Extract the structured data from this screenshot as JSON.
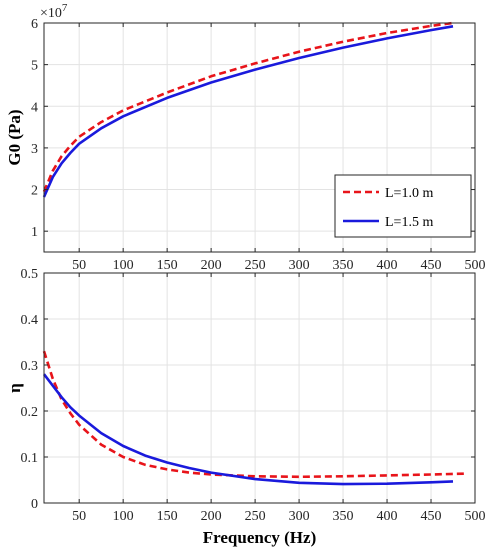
{
  "chart_data": [
    {
      "type": "line",
      "title": "",
      "xlabel": "",
      "ylabel": "G0 (Pa)",
      "y_exponent_label": "×10",
      "y_exponent": "7",
      "xlim": [
        10,
        500
      ],
      "ylim": [
        0.5,
        6
      ],
      "xticks": [
        50,
        100,
        150,
        200,
        250,
        300,
        350,
        400,
        450,
        500
      ],
      "yticks": [
        1,
        2,
        3,
        4,
        5,
        6
      ],
      "grid": true,
      "legend": {
        "placement": "lower-right"
      },
      "series": [
        {
          "name": "L=1.0 m",
          "color": "#e8141a",
          "style": "dashed",
          "x": [
            10,
            20,
            30,
            40,
            50,
            75,
            100,
            150,
            200,
            250,
            300,
            350,
            400,
            450,
            475
          ],
          "y": [
            1.95,
            2.45,
            2.8,
            3.05,
            3.27,
            3.62,
            3.9,
            4.33,
            4.72,
            5.03,
            5.31,
            5.55,
            5.76,
            5.93,
            6.0
          ]
        },
        {
          "name": "L=1.5 m",
          "color": "#1a1adc",
          "style": "solid",
          "x": [
            10,
            20,
            30,
            40,
            50,
            75,
            100,
            150,
            200,
            250,
            300,
            350,
            400,
            450,
            475
          ],
          "y": [
            1.82,
            2.3,
            2.63,
            2.88,
            3.1,
            3.47,
            3.76,
            4.2,
            4.57,
            4.88,
            5.16,
            5.41,
            5.63,
            5.83,
            5.92
          ]
        }
      ]
    },
    {
      "type": "line",
      "title": "",
      "xlabel": "Frequency (Hz)",
      "ylabel": "η",
      "xlim": [
        10,
        500
      ],
      "ylim": [
        0,
        0.5
      ],
      "xticks": [
        50,
        100,
        150,
        200,
        250,
        300,
        350,
        400,
        450,
        500
      ],
      "yticks": [
        0,
        0.1,
        0.2,
        0.3,
        0.4,
        0.5
      ],
      "ytick_labels": [
        "0",
        "0.1",
        "0.2",
        "0.3",
        "0.4",
        "0.5"
      ],
      "grid": true,
      "series": [
        {
          "name": "L=1.0 m",
          "color": "#e8141a",
          "style": "dashed",
          "x": [
            10,
            20,
            30,
            40,
            50,
            75,
            100,
            125,
            150,
            175,
            200,
            250,
            300,
            350,
            400,
            450,
            490
          ],
          "y": [
            0.33,
            0.27,
            0.225,
            0.195,
            0.17,
            0.127,
            0.1,
            0.083,
            0.073,
            0.066,
            0.062,
            0.058,
            0.057,
            0.058,
            0.06,
            0.062,
            0.064
          ]
        },
        {
          "name": "L=1.5 m",
          "color": "#1a1adc",
          "style": "solid",
          "x": [
            10,
            20,
            30,
            40,
            50,
            75,
            100,
            125,
            150,
            175,
            200,
            250,
            300,
            350,
            400,
            450,
            475
          ],
          "y": [
            0.28,
            0.255,
            0.23,
            0.208,
            0.19,
            0.152,
            0.124,
            0.103,
            0.088,
            0.076,
            0.066,
            0.052,
            0.044,
            0.041,
            0.042,
            0.045,
            0.047
          ]
        }
      ]
    }
  ]
}
